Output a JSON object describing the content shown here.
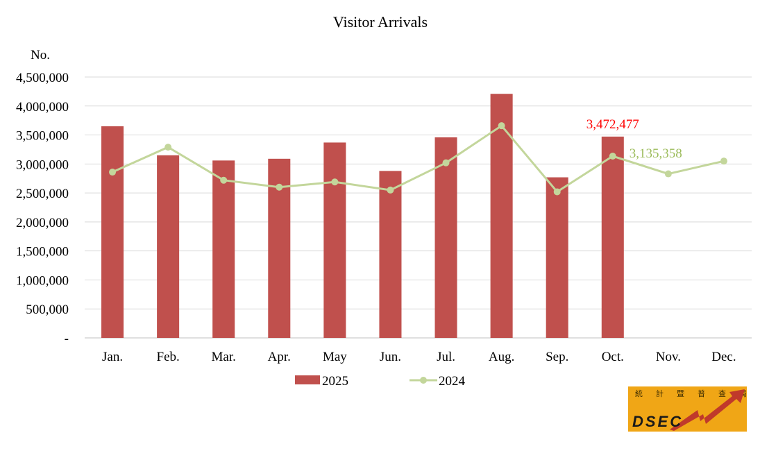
{
  "chart_data": {
    "type": "bar",
    "title": "Visitor Arrivals",
    "ylabel": "No.",
    "xlabel": "",
    "categories": [
      "Jan.",
      "Feb.",
      "Mar.",
      "Apr.",
      "May",
      "Jun.",
      "Jul.",
      "Aug.",
      "Sep.",
      "Oct.",
      "Nov.",
      "Dec."
    ],
    "ylim": [
      0,
      4500000
    ],
    "ytick_labels": [
      "-",
      "500,000",
      "1,000,000",
      "1,500,000",
      "2,000,000",
      "2,500,000",
      "3,000,000",
      "3,500,000",
      "4,000,000",
      "4,500,000"
    ],
    "grid": true,
    "legend_position": "bottom",
    "series": [
      {
        "name": "2025",
        "type": "bar",
        "color": "#c0504d",
        "values": [
          3650000,
          3150000,
          3060000,
          3090000,
          3370000,
          2880000,
          3460000,
          4210000,
          2770000,
          3472477,
          null,
          null
        ]
      },
      {
        "name": "2024",
        "type": "line",
        "color": "#c3d69b",
        "values": [
          2860000,
          3290000,
          2720000,
          2600000,
          2690000,
          2550000,
          3020000,
          3660000,
          2520000,
          3135358,
          2830000,
          3050000
        ]
      }
    ],
    "annotations": [
      {
        "series": "2025",
        "category": "Oct.",
        "text": "3,472,477",
        "color": "#ff0000"
      },
      {
        "series": "2024",
        "category": "Oct.",
        "text": "3,135,358",
        "color": "#9bbb59"
      }
    ]
  },
  "logo": {
    "text": "DSEC",
    "chars": [
      "統",
      "計",
      "暨",
      "普",
      "查",
      "局"
    ],
    "bg_color": "#f0a616"
  }
}
